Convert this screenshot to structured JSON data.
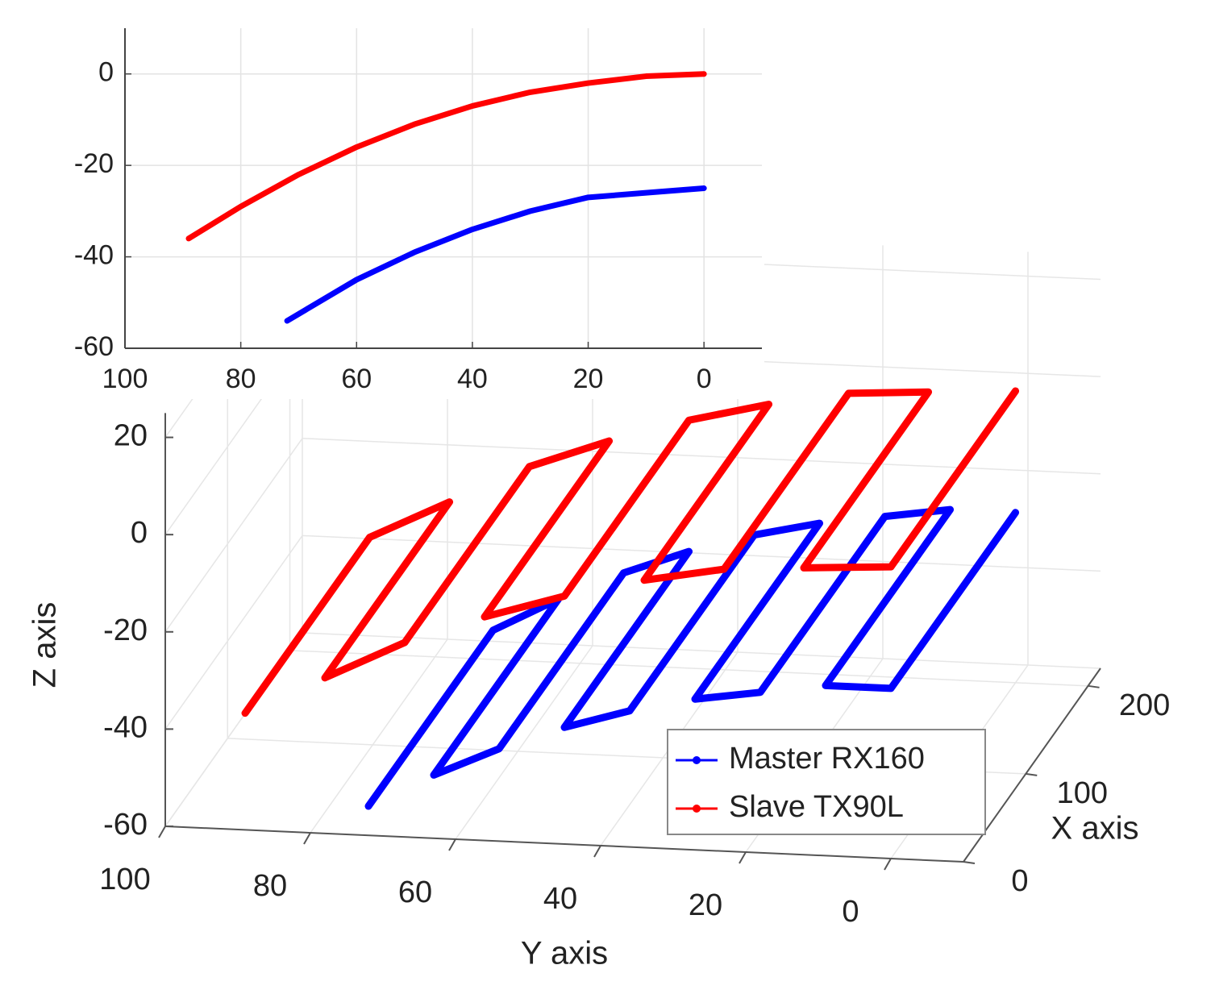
{
  "chart_data": [
    {
      "type": "line",
      "xlim": [
        100,
        -10
      ],
      "ylim": [
        -60,
        10
      ],
      "xticks": [
        100,
        80,
        60,
        40,
        20,
        0
      ],
      "yticks": [
        -60,
        -40,
        -20,
        0
      ],
      "grid": true,
      "series": [
        {
          "color": "#0000ff",
          "x": [
            72,
            60,
            50,
            40,
            30,
            20,
            10,
            0
          ],
          "values": [
            -54,
            -45,
            -39,
            -34,
            -30,
            -27,
            -26,
            -25
          ]
        },
        {
          "color": "#ff0000",
          "x": [
            89,
            80,
            70,
            60,
            50,
            40,
            30,
            20,
            10,
            0
          ],
          "values": [
            -36,
            -29,
            -22,
            -16,
            -11,
            -7,
            -4,
            -2,
            -0.5,
            0
          ]
        }
      ]
    },
    {
      "type": "line3d",
      "x_label": "X axis",
      "y_label": "Y axis",
      "z_label": "Z axis",
      "xlim": [
        0,
        220
      ],
      "ylim": [
        100,
        -10
      ],
      "zlim": [
        -60,
        25
      ],
      "xticks": [
        0,
        100,
        200
      ],
      "yticks": [
        100,
        80,
        60,
        40,
        20,
        0
      ],
      "zticks": [
        -60,
        -40,
        -20,
        0,
        20
      ],
      "grid": true,
      "legend": "lower right",
      "series": [
        {
          "name": "Master RX160",
          "color": "#0000ff",
          "x": [
            0,
            200,
            200,
            0,
            0,
            200,
            200,
            0,
            0,
            200,
            200,
            0,
            0,
            200,
            200,
            0,
            0,
            200
          ],
          "y": [
            72,
            72,
            63,
            63,
            54,
            54,
            45,
            45,
            36,
            36,
            27,
            27,
            18,
            18,
            9,
            9,
            0,
            0
          ],
          "z": [
            -54,
            -54,
            -47,
            -47,
            -41,
            -41,
            -36,
            -36,
            -32,
            -32,
            -29,
            -29,
            -27,
            -27,
            -25,
            -25,
            -25,
            -25
          ]
        },
        {
          "name": "Slave TX90L",
          "color": "#ff0000",
          "x": [
            0,
            200,
            200,
            0,
            0,
            200,
            200,
            0,
            0,
            200,
            200,
            0,
            0,
            200,
            200,
            0,
            0,
            200
          ],
          "y": [
            89,
            89,
            78,
            78,
            67,
            67,
            56,
            56,
            45,
            45,
            34,
            34,
            23,
            23,
            12,
            12,
            0,
            0
          ],
          "z": [
            -36,
            -36,
            -28,
            -28,
            -20,
            -20,
            -14,
            -14,
            -9,
            -9,
            -5,
            -5,
            -2,
            -2,
            -1,
            -1,
            0,
            0
          ]
        }
      ]
    }
  ]
}
